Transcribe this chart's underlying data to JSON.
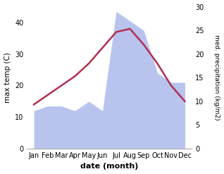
{
  "months": [
    "Jan",
    "Feb",
    "Mar",
    "Apr",
    "May",
    "Jun",
    "Jul",
    "Aug",
    "Sep",
    "Oct",
    "Nov",
    "Dec"
  ],
  "max_temp": [
    14,
    17,
    20,
    23,
    27,
    32,
    37,
    38,
    33,
    27,
    20,
    15
  ],
  "precipitation": [
    8,
    9,
    9,
    8,
    10,
    8,
    29,
    27,
    25,
    16,
    14,
    14
  ],
  "temp_ylim": [
    0,
    45
  ],
  "precip_ylim": [
    0,
    30
  ],
  "temp_color": "#b03050",
  "precip_fill_color": "#b8c4ee",
  "xlabel": "date (month)",
  "ylabel_left": "max temp (C)",
  "ylabel_right": "med. precipitation (kg/m2)",
  "background_color": "#ffffff",
  "temp_linewidth": 1.8
}
